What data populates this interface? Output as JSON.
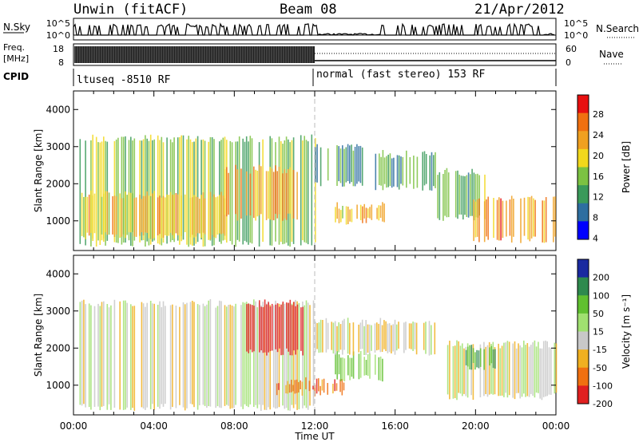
{
  "header": {
    "station": "Unwin (fitACF)",
    "beam": "Beam 08",
    "date": "21/Apr/2012"
  },
  "strips": {
    "nsky_label": "N.Sky",
    "nsky_ticks": [
      "10^5",
      "10^0"
    ],
    "nsearch_label": "N.Search",
    "nsearch_ticks": [
      "10^5",
      "10^0"
    ],
    "freq_label": "Freq.",
    "freq_unit": "[MHz]",
    "freq_ticks": [
      "18",
      "8"
    ],
    "nave_label": "Nave",
    "nave_ticks": [
      "60",
      "0"
    ],
    "cpid_label": "CPID",
    "cpid_segments": [
      {
        "label": "ltuseq -8510 RF",
        "start_hour": 0
      },
      {
        "label": "normal (fast stereo) 153 RF",
        "start_hour": 12
      }
    ]
  },
  "time_axis": {
    "label": "Time UT",
    "ticks": [
      "00:00",
      "04:00",
      "08:00",
      "12:00",
      "16:00",
      "20:00",
      "00:00"
    ]
  },
  "colors": {
    "power": [
      "#0000ff",
      "#2d6ea0",
      "#3a9a5a",
      "#7cc242",
      "#f2d81c",
      "#f0a020",
      "#f07010",
      "#e81010"
    ],
    "velocity": [
      "#1a2aa0",
      "#2e8a4e",
      "#60c030",
      "#a0e070",
      "#c8c8c8",
      "#f0b020",
      "#f07010",
      "#e02020"
    ]
  },
  "chart_data": [
    {
      "type": "heatmap",
      "title": "",
      "xlabel": "Time UT",
      "ylabel": "Slant Range [km]",
      "xlim": [
        0,
        24
      ],
      "ylim": [
        200,
        4500
      ],
      "y_ticks": [
        "4000",
        "3000",
        "2000",
        "1000"
      ],
      "y_tick_values": [
        4000,
        3000,
        2000,
        1000
      ],
      "colorbar_label": "Power [dB]",
      "colorbar_ticks": [
        "28",
        "24",
        "20",
        "16",
        "12",
        "8",
        "4"
      ],
      "colorbar_range": [
        0,
        32
      ],
      "regions": [
        {
          "t0": 0.3,
          "t1": 12.0,
          "r0": 300,
          "r1": 3300,
          "value": 14
        },
        {
          "t0": 0.3,
          "t1": 7.5,
          "r0": 500,
          "r1": 1800,
          "value": 20
        },
        {
          "t0": 7.5,
          "t1": 11.5,
          "r0": 1000,
          "r1": 2500,
          "value": 22
        },
        {
          "t0": 12.0,
          "t1": 14.5,
          "r0": 1900,
          "r1": 3100,
          "value": 10
        },
        {
          "t0": 13.0,
          "t1": 15.5,
          "r0": 900,
          "r1": 1500,
          "value": 20
        },
        {
          "t0": 15.0,
          "t1": 18.0,
          "r0": 1800,
          "r1": 2900,
          "value": 10
        },
        {
          "t0": 18.0,
          "t1": 20.5,
          "r0": 1000,
          "r1": 2400,
          "value": 12
        },
        {
          "t0": 19.7,
          "t1": 24.0,
          "r0": 400,
          "r1": 1700,
          "value": 24
        }
      ]
    },
    {
      "type": "heatmap",
      "title": "",
      "xlabel": "Time UT",
      "ylabel": "Slant Range [km]",
      "xlim": [
        0,
        24
      ],
      "ylim": [
        200,
        4500
      ],
      "y_ticks": [
        "4000",
        "3000",
        "2000",
        "1000"
      ],
      "y_tick_values": [
        4000,
        3000,
        2000,
        1000
      ],
      "colorbar_label": "Velocity [m s⁻¹]",
      "colorbar_ticks": [
        "200",
        "100",
        "50",
        "15",
        "-15",
        "-50",
        "-100",
        "-200"
      ],
      "colorbar_range": [
        -250,
        250
      ],
      "regions": [
        {
          "t0": 0.3,
          "t1": 12.0,
          "r0": 300,
          "r1": 3300,
          "value": 0
        },
        {
          "t0": 8.5,
          "t1": 11.5,
          "r0": 1800,
          "r1": 3300,
          "value": -150
        },
        {
          "t0": 10.0,
          "t1": 13.5,
          "r0": 700,
          "r1": 1200,
          "value": -70
        },
        {
          "t0": 13.0,
          "t1": 15.5,
          "r0": 1100,
          "r1": 1900,
          "value": 60
        },
        {
          "t0": 12.0,
          "t1": 18.0,
          "r0": 1800,
          "r1": 2800,
          "value": 0
        },
        {
          "t0": 18.5,
          "t1": 24.0,
          "r0": 600,
          "r1": 2200,
          "value": 0
        },
        {
          "t0": 19.5,
          "t1": 21.0,
          "r0": 1400,
          "r1": 2100,
          "value": 90
        }
      ]
    }
  ]
}
